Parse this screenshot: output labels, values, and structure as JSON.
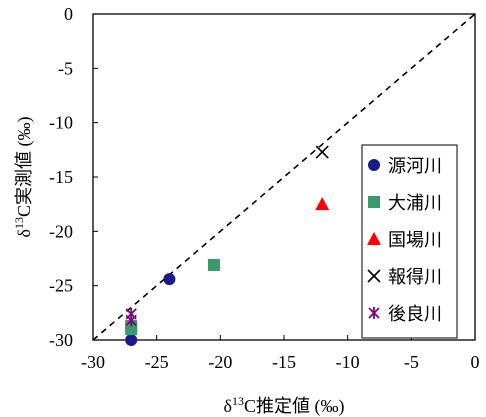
{
  "chart_data": {
    "type": "scatter",
    "title": "",
    "xlabel_prefix": "δ",
    "xlabel_sup": "13",
    "xlabel_rest": "C推定値 (‰)",
    "ylabel_prefix": "δ",
    "ylabel_sup": "13",
    "ylabel_rest": "C実測値 (‰)",
    "xlim": [
      -30,
      0
    ],
    "ylim": [
      -30,
      0
    ],
    "x_ticks": [
      -30,
      -25,
      -20,
      -15,
      -10,
      -5,
      0
    ],
    "y_ticks": [
      0,
      -5,
      -10,
      -15,
      -20,
      -25,
      -30
    ],
    "grid": false,
    "reference_line": "1:1 dashed",
    "legend_position": "bottom-right",
    "series": [
      {
        "name": "源河川",
        "marker": "circle",
        "color": "#1a1a8c",
        "points": [
          [
            -27,
            -30
          ],
          [
            -24,
            -24.4
          ]
        ]
      },
      {
        "name": "大浦川",
        "marker": "square",
        "color": "#3a9a6e",
        "points": [
          [
            -27,
            -28.7
          ],
          [
            -27,
            -29
          ],
          [
            -20.5,
            -23.1
          ]
        ]
      },
      {
        "name": "国場川",
        "marker": "triangle",
        "color": "#ff0000",
        "points": [
          [
            -12,
            -17.5
          ]
        ]
      },
      {
        "name": "報得川",
        "marker": "x",
        "color": "#000000",
        "points": [
          [
            -12,
            -12.7
          ]
        ]
      },
      {
        "name": "後良川",
        "marker": "asterisk",
        "color": "#800080",
        "points": [
          [
            -27,
            -27.6
          ],
          [
            -27,
            -28.2
          ]
        ]
      }
    ]
  }
}
